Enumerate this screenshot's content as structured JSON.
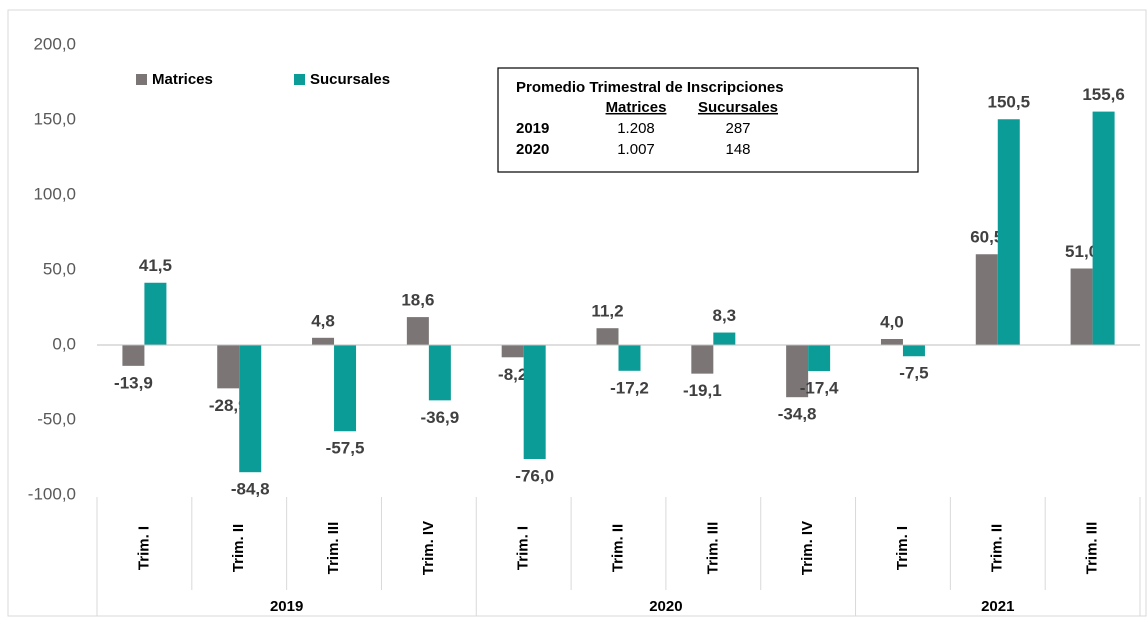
{
  "chart_data": {
    "type": "bar",
    "categories": [
      "Trim. I",
      "Trim. II",
      "Trim. III",
      "Trim. IV",
      "Trim. I",
      "Trim. II",
      "Trim. III",
      "Trim. IV",
      "Trim. I",
      "Trim. II",
      "Trim. III"
    ],
    "groups": [
      {
        "label": "2019",
        "size": 4
      },
      {
        "label": "2020",
        "size": 4
      },
      {
        "label": "2021",
        "size": 3
      }
    ],
    "series": [
      {
        "name": "Matrices",
        "color": "#7b7675",
        "values": [
          -13.9,
          -28.9,
          4.8,
          18.6,
          -8.2,
          11.2,
          -19.1,
          -34.8,
          4.0,
          60.5,
          51.0
        ],
        "value_labels": [
          "-13,9",
          "-28,9",
          "4,8",
          "18,6",
          "-8,2",
          "11,2",
          "-19,1",
          "-34,8",
          "4,0",
          "60,5",
          "51,0"
        ]
      },
      {
        "name": "Sucursales",
        "color": "#0b9c97",
        "values": [
          41.5,
          -84.8,
          -57.5,
          -36.9,
          -76.0,
          -17.2,
          8.3,
          -17.4,
          -7.5,
          150.5,
          155.6
        ],
        "value_labels": [
          "41,5",
          "-84,8",
          "-57,5",
          "-36,9",
          "-76,0",
          "-17,2",
          "8,3",
          "-17,4",
          "-7,5",
          "150,5",
          "155,6"
        ]
      }
    ],
    "ylim": [
      -100,
      200
    ],
    "yticks": [
      {
        "value": -100,
        "label": "-100,0"
      },
      {
        "value": -50,
        "label": "-50,0"
      },
      {
        "value": 0,
        "label": "0,0"
      },
      {
        "value": 50,
        "label": "50,0"
      },
      {
        "value": 100,
        "label": "100,0"
      },
      {
        "value": 150,
        "label": "150,0"
      },
      {
        "value": 200,
        "label": "200,0"
      }
    ],
    "legend": "top-left",
    "annotation_table": {
      "title": "Promedio Trimestral de Inscripciones",
      "columns": [
        "Matrices",
        "Sucursales"
      ],
      "rows": [
        {
          "label": "2019",
          "values": [
            "1.208",
            "287"
          ]
        },
        {
          "label": "2020",
          "values": [
            "1.007",
            "148"
          ]
        }
      ]
    }
  }
}
